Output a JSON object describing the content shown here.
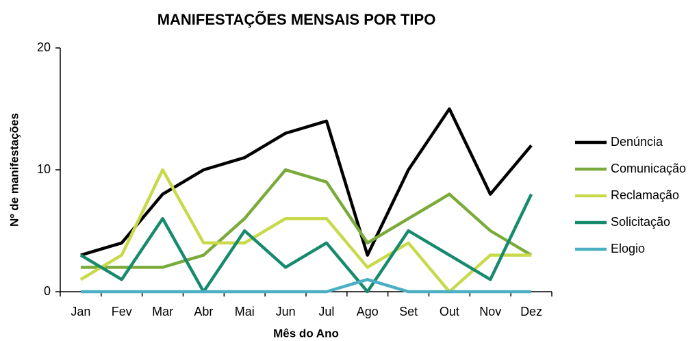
{
  "chart_data": {
    "type": "line",
    "title": "MANIFESTAÇÕES MENSAIS POR TIPO",
    "x_label": "Mês do Ano",
    "y_label": "Nº de manifestações",
    "categories": [
      "Jan",
      "Fev",
      "Mar",
      "Abr",
      "Mai",
      "Jun",
      "Jul",
      "Ago",
      "Set",
      "Out",
      "Nov",
      "Dez"
    ],
    "ylim": [
      0,
      20
    ],
    "yticks": [
      0,
      10,
      20
    ],
    "grid": false,
    "legend": "right",
    "series": [
      {
        "name": "Denúncia",
        "color": "#000000",
        "values": [
          3,
          4,
          8,
          10,
          11,
          13,
          14,
          3,
          10,
          15,
          8,
          12
        ]
      },
      {
        "name": "Comunicação",
        "color": "#7aab3a",
        "values": [
          2,
          2,
          2,
          3,
          6,
          10,
          9,
          4,
          6,
          8,
          5,
          3
        ]
      },
      {
        "name": "Reclamação",
        "color": "#c8d94a",
        "values": [
          1,
          3,
          10,
          4,
          4,
          6,
          6,
          2,
          4,
          0,
          3,
          3
        ]
      },
      {
        "name": "Solicitação",
        "color": "#178a6e",
        "values": [
          3,
          1,
          6,
          0,
          5,
          2,
          4,
          0,
          5,
          3,
          1,
          8
        ]
      },
      {
        "name": "Elogio",
        "color": "#4bafc4",
        "values": [
          0,
          0,
          0,
          0,
          0,
          0,
          0,
          1,
          0,
          0,
          0,
          0
        ]
      }
    ]
  }
}
